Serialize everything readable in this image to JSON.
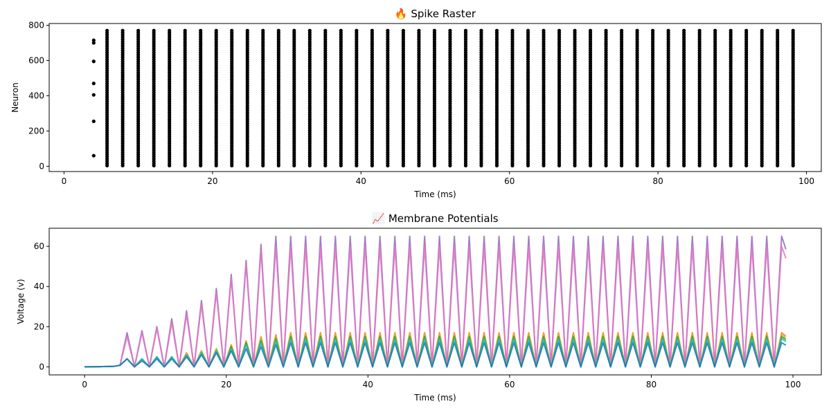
{
  "chart_data": [
    {
      "type": "scatter",
      "title": "🔥 Spike Raster",
      "xlabel": "Time (ms)",
      "ylabel": "Neuron",
      "xlim": [
        -2,
        102
      ],
      "ylim": [
        -30,
        810
      ],
      "xticks": [
        0,
        20,
        40,
        60,
        80,
        100
      ],
      "yticks": [
        0,
        200,
        400,
        600,
        800
      ],
      "grid": false,
      "marker_color": "#000000",
      "description_of_data": "Regular spiking of all neurons on a ~2.1 ms grid starting near t=5.8 ms, neurons 0-770; sparse early spikes at t=4",
      "early_spikes": {
        "t": 4,
        "neurons": [
          60,
          255,
          405,
          470,
          595,
          700,
          715
        ]
      },
      "regular_spikes": {
        "t_start": 5.8,
        "period": 2.1,
        "t_end": 99,
        "neuron_min": 0,
        "neuron_max": 770
      }
    },
    {
      "type": "line",
      "title": "📈 Membrane Potentials",
      "xlabel": "Time (ms)",
      "ylabel": "Voltage (v)",
      "xlim": [
        -5,
        104
      ],
      "ylim": [
        -4,
        69
      ],
      "xticks": [
        0,
        20,
        40,
        60,
        80,
        100
      ],
      "yticks": [
        0,
        20,
        40,
        60
      ],
      "grid": false,
      "series": [
        {
          "color": "#9467bd",
          "peaks": [
            [
              7,
              17
            ],
            [
              9,
              18
            ],
            [
              11,
              20
            ],
            [
              13,
              24
            ],
            [
              15,
              28
            ],
            [
              17,
              33
            ],
            [
              19,
              39
            ],
            [
              21,
              46
            ],
            [
              23,
              53
            ],
            [
              25,
              61
            ],
            [
              27,
              65
            ]
          ],
          "steady_peak": 65
        },
        {
          "color": "#e377c2",
          "peaks": [
            [
              7,
              15
            ],
            [
              9,
              17
            ],
            [
              11,
              19
            ],
            [
              13,
              22
            ],
            [
              15,
              26
            ],
            [
              17,
              31
            ],
            [
              19,
              37
            ],
            [
              21,
              44
            ],
            [
              23,
              51
            ],
            [
              25,
              58
            ],
            [
              27,
              60
            ]
          ],
          "steady_peak": 60
        },
        {
          "color": "#ff7f0e",
          "peaks": [
            [
              6,
              4
            ],
            [
              8,
              4
            ],
            [
              10,
              5
            ],
            [
              12,
              5
            ],
            [
              14,
              7
            ],
            [
              16,
              8
            ],
            [
              18,
              9
            ],
            [
              20,
              11
            ],
            [
              22,
              13
            ],
            [
              24,
              15
            ],
            [
              26,
              16
            ],
            [
              28,
              17
            ]
          ],
          "steady_peak": 17
        },
        {
          "color": "#bcbd22",
          "peaks": [
            [
              6,
              4
            ],
            [
              8,
              4
            ],
            [
              10,
              5
            ],
            [
              12,
              5
            ],
            [
              14,
              6
            ],
            [
              16,
              8
            ],
            [
              18,
              9
            ],
            [
              20,
              10
            ],
            [
              22,
              12
            ],
            [
              24,
              14
            ],
            [
              26,
              15
            ],
            [
              28,
              16
            ]
          ],
          "steady_peak": 16
        },
        {
          "color": "#2ca02c",
          "peaks": [
            [
              6,
              4
            ],
            [
              8,
              4
            ],
            [
              10,
              5
            ],
            [
              12,
              5
            ],
            [
              14,
              6
            ],
            [
              16,
              7
            ],
            [
              18,
              8
            ],
            [
              20,
              10
            ],
            [
              22,
              12
            ],
            [
              24,
              13
            ],
            [
              26,
              14
            ],
            [
              28,
              15
            ]
          ],
          "steady_peak": 15
        },
        {
          "color": "#17becf",
          "peaks": [
            [
              6,
              4
            ],
            [
              8,
              4
            ],
            [
              10,
              5
            ],
            [
              12,
              5
            ],
            [
              14,
              6
            ],
            [
              16,
              7
            ],
            [
              18,
              8
            ],
            [
              20,
              9
            ],
            [
              22,
              11
            ],
            [
              24,
              12
            ],
            [
              26,
              13
            ],
            [
              28,
              14
            ]
          ],
          "steady_peak": 14
        },
        {
          "color": "#1f77b4",
          "peaks": [
            [
              6,
              4
            ],
            [
              8,
              3
            ],
            [
              10,
              4
            ],
            [
              12,
              4
            ],
            [
              14,
              5
            ],
            [
              16,
              6
            ],
            [
              18,
              7
            ],
            [
              20,
              8
            ],
            [
              22,
              9
            ],
            [
              24,
              10
            ],
            [
              26,
              11
            ],
            [
              28,
              12
            ]
          ],
          "steady_peak": 12
        }
      ],
      "oscillation": {
        "t_start": 6,
        "period": 2.1,
        "t_end": 99
      }
    }
  ]
}
